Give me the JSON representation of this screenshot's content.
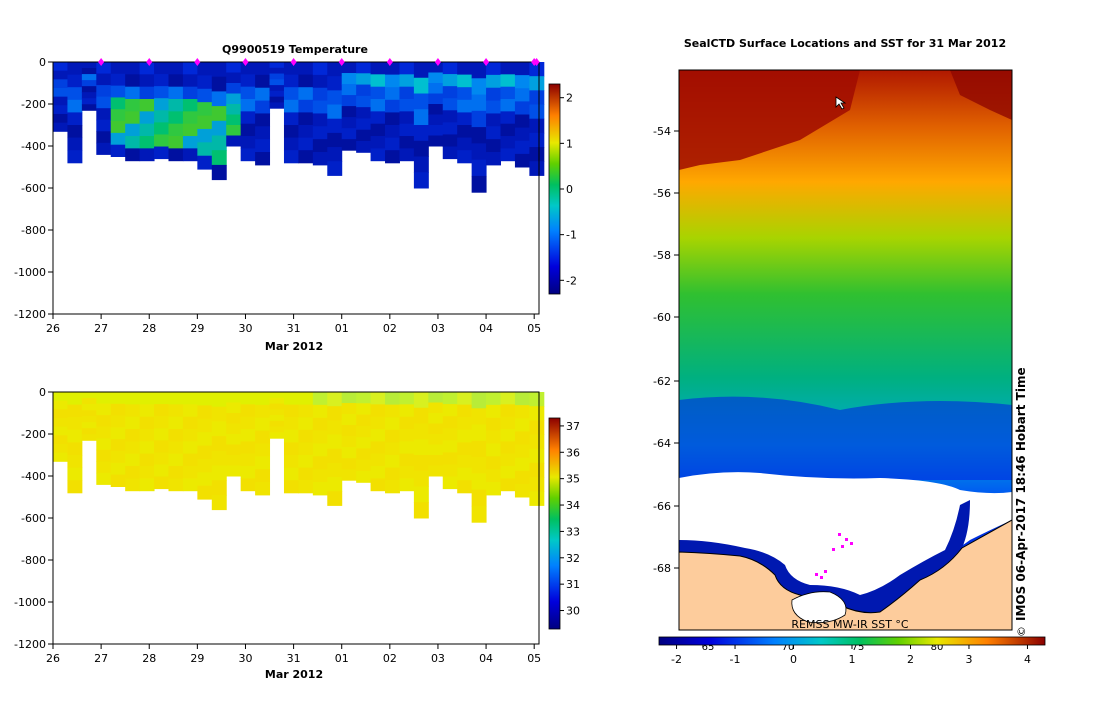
{
  "chart_data": [
    {
      "type": "heatmap",
      "title": "Q9900519  Temperature",
      "xlabel": "Mar 2012",
      "ylabel": "",
      "x_ticks": [
        "26",
        "27",
        "28",
        "29",
        "30",
        "31",
        "01",
        "02",
        "03",
        "04",
        "05"
      ],
      "y_ticks": [
        0,
        -200,
        -400,
        -600,
        -800,
        -1000,
        -1200
      ],
      "ylim": [
        -1200,
        0
      ],
      "xlim": [
        26.0,
        36.1
      ],
      "profile_days": [
        26.0,
        26.3,
        26.6,
        26.9,
        27.2,
        27.5,
        27.8,
        28.1,
        28.4,
        28.7,
        29.0,
        29.3,
        29.6,
        29.9,
        30.2,
        30.5,
        30.8,
        31.1,
        31.4,
        31.7,
        32.0,
        32.3,
        32.6,
        32.9,
        33.2,
        33.5,
        33.8,
        34.1,
        34.4,
        34.7,
        35.0,
        35.3,
        35.6,
        35.9
      ],
      "profile_depths": [
        330,
        480,
        230,
        440,
        450,
        470,
        470,
        460,
        470,
        470,
        510,
        560,
        400,
        470,
        490,
        220,
        480,
        480,
        490,
        540,
        420,
        430,
        470,
        480,
        470,
        600,
        400,
        460,
        480,
        620,
        490,
        470,
        500,
        540
      ],
      "marker_days": [
        27,
        28,
        29,
        30,
        31,
        32,
        33,
        34,
        35,
        36,
        36.05
      ],
      "colorbar": {
        "min": -2.3,
        "max": 2.3,
        "ticks": [
          2,
          1,
          0,
          -1,
          -2
        ]
      }
    },
    {
      "type": "heatmap",
      "title": "",
      "xlabel": "Mar 2012",
      "x_ticks": [
        "26",
        "27",
        "28",
        "29",
        "30",
        "31",
        "01",
        "02",
        "03",
        "04",
        "05"
      ],
      "y_ticks": [
        0,
        -200,
        -400,
        -600,
        -800,
        -1000,
        -1200
      ],
      "ylim": [
        -1200,
        0
      ],
      "colorbar": {
        "min": 29.3,
        "max": 37.3,
        "ticks": [
          37,
          36,
          35,
          34,
          33,
          32,
          31,
          30
        ]
      }
    },
    {
      "type": "heatmap",
      "title": "SealCTD Surface Locations and SST for 31 Mar 2012",
      "lat_ticks": [
        -54,
        -56,
        -58,
        -60,
        -62,
        -64,
        -66,
        -68
      ],
      "lon_ticks": [
        "65",
        "70",
        "75",
        "80"
      ],
      "colorbar_label": "REMSS MW-IR SST °C",
      "colorbar": {
        "min": -2.3,
        "max": 4.3,
        "ticks": [
          "-2",
          "-1",
          "0",
          "1",
          "2",
          "3",
          "4"
        ]
      }
    }
  ],
  "footer": {
    "stamp": "IMOS 06-Apr-2017 18:46 Hobart Time",
    "copyright": "©"
  },
  "colors": {
    "magenta": "#ff00ff",
    "land": "#fdcc9c",
    "coast": "#000000"
  }
}
